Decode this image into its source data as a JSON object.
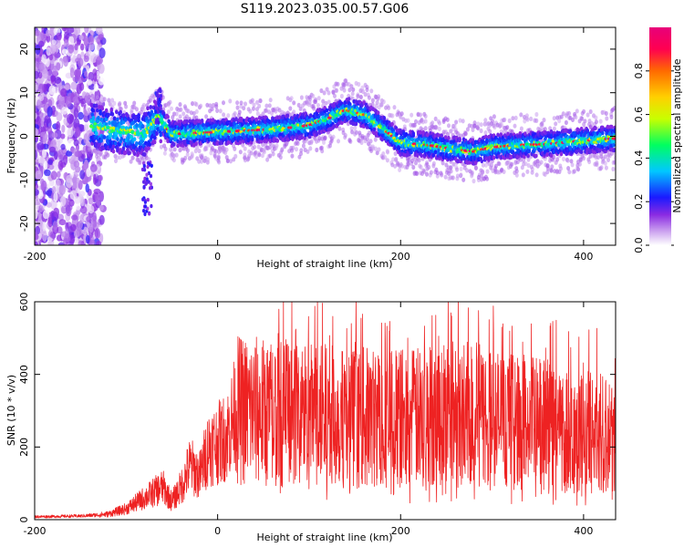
{
  "title": "S119.2023.035.00.57.G06",
  "chart_data": [
    {
      "type": "heatmap",
      "panel": "spectrogram",
      "xlabel": "Height of straight line (km)",
      "ylabel": "Frequency (Hz)",
      "xlim": [
        -200,
        435
      ],
      "ylim": [
        -25,
        25
      ],
      "xticks": [
        -200,
        0,
        200,
        400
      ],
      "yticks": [
        -20,
        -10,
        0,
        10,
        20
      ],
      "colorbar": {
        "label": "Normalized spectral amplitude",
        "range": [
          0,
          1
        ],
        "ticks": [
          0.0,
          0.2,
          0.4,
          0.6,
          0.8
        ],
        "colormap": [
          "#ffffff",
          "#cfa8f0",
          "#8a2be2",
          "#1a1aff",
          "#00c8ff",
          "#00ff60",
          "#c8ff00",
          "#ffd000",
          "#ff6a00",
          "#ff0050",
          "#e8007a"
        ]
      },
      "ridge": {
        "x": [
          -135,
          -120,
          -100,
          -80,
          -65,
          -50,
          -20,
          0,
          20,
          50,
          80,
          100,
          120,
          140,
          160,
          180,
          200,
          230,
          260,
          280,
          300,
          330,
          360,
          400,
          435
        ],
        "y": [
          2.5,
          1.5,
          1.0,
          0.5,
          4.5,
          0.5,
          0.8,
          1.0,
          1.2,
          1.5,
          2.0,
          2.5,
          4.0,
          6.0,
          5.0,
          2.0,
          -1.5,
          -2.0,
          -3.0,
          -3.5,
          -2.5,
          -2.0,
          -1.8,
          -1.0,
          -0.5
        ]
      }
    },
    {
      "type": "line",
      "panel": "snr",
      "xlabel": "Height of straight line (km)",
      "ylabel": "SNR (10 * v/v)",
      "xlim": [
        -200,
        435
      ],
      "ylim": [
        0,
        600
      ],
      "xticks": [
        -200,
        0,
        200,
        400
      ],
      "yticks": [
        0,
        200,
        400,
        600
      ],
      "color": "#ee2222",
      "envelope": {
        "x": [
          -200,
          -150,
          -120,
          -100,
          -80,
          -60,
          -50,
          -40,
          -30,
          -20,
          -10,
          0,
          10,
          20,
          40,
          60,
          80,
          100,
          140,
          180,
          220,
          250,
          280,
          320,
          360,
          400,
          435
        ],
        "y": [
          8,
          10,
          15,
          30,
          60,
          90,
          50,
          90,
          150,
          120,
          200,
          210,
          230,
          300,
          300,
          290,
          300,
          290,
          280,
          280,
          280,
          300,
          290,
          270,
          260,
          240,
          240
        ]
      }
    }
  ]
}
